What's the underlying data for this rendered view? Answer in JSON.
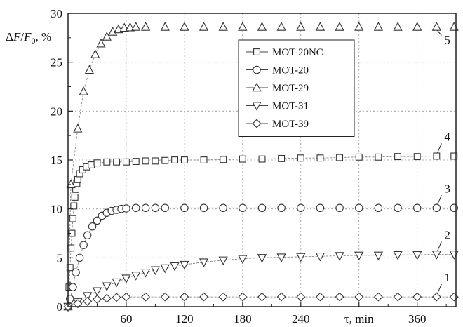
{
  "chart_data": {
    "type": "scatter",
    "ylabel_parts": [
      "Δ",
      "F",
      "/",
      "F",
      "0",
      ", %"
    ],
    "xlabel": "τ, min",
    "xlim": [
      0,
      400
    ],
    "ylim": [
      0,
      30
    ],
    "xticks": [
      60,
      120,
      180,
      240,
      360
    ],
    "xtick_minor": [
      30,
      90,
      150,
      210,
      270,
      330,
      390
    ],
    "yticks": [
      0,
      5,
      10,
      15,
      20,
      25,
      30
    ],
    "ytick_minor": [
      2.5,
      7.5,
      12.5,
      17.5,
      22.5,
      27.5
    ],
    "grid": true,
    "legend_position": "top-center",
    "series": [
      {
        "name": "MOT-20NC",
        "marker": "square",
        "curve_label": "4",
        "points": [
          [
            1,
            2
          ],
          [
            2,
            4
          ],
          [
            3,
            6
          ],
          [
            4,
            7.5
          ],
          [
            5,
            9
          ],
          [
            6,
            10.3
          ],
          [
            7,
            11.2
          ],
          [
            8,
            12
          ],
          [
            9,
            12.6
          ],
          [
            10,
            13
          ],
          [
            12,
            13.6
          ],
          [
            15,
            14
          ],
          [
            19,
            14.3
          ],
          [
            24,
            14.5
          ],
          [
            30,
            14.7
          ],
          [
            40,
            14.8
          ],
          [
            50,
            14.8
          ],
          [
            60,
            14.8
          ],
          [
            70,
            14.85
          ],
          [
            80,
            14.9
          ],
          [
            90,
            14.9
          ],
          [
            100,
            14.95
          ],
          [
            110,
            15
          ],
          [
            120,
            15
          ],
          [
            140,
            15
          ],
          [
            160,
            15.05
          ],
          [
            180,
            15.1
          ],
          [
            200,
            15.1
          ],
          [
            220,
            15.15
          ],
          [
            240,
            15.2
          ],
          [
            260,
            15.2
          ],
          [
            280,
            15.25
          ],
          [
            300,
            15.3
          ],
          [
            320,
            15.3
          ],
          [
            340,
            15.35
          ],
          [
            360,
            15.35
          ],
          [
            380,
            15.4
          ],
          [
            398,
            15.4
          ]
        ]
      },
      {
        "name": "MOT-20",
        "marker": "circle",
        "curve_label": "3",
        "points": [
          [
            2,
            0.8
          ],
          [
            5,
            2
          ],
          [
            8,
            3.5
          ],
          [
            12,
            5
          ],
          [
            16,
            6.3
          ],
          [
            20,
            7.3
          ],
          [
            25,
            8.2
          ],
          [
            30,
            8.8
          ],
          [
            35,
            9.3
          ],
          [
            40,
            9.6
          ],
          [
            45,
            9.8
          ],
          [
            50,
            9.9
          ],
          [
            55,
            10
          ],
          [
            60,
            10.05
          ],
          [
            70,
            10.1
          ],
          [
            80,
            10.1
          ],
          [
            90,
            10.1
          ],
          [
            100,
            10.1
          ],
          [
            120,
            10.1
          ],
          [
            140,
            10.1
          ],
          [
            160,
            10.1
          ],
          [
            180,
            10.1
          ],
          [
            200,
            10.1
          ],
          [
            220,
            10.1
          ],
          [
            240,
            10.1
          ],
          [
            260,
            10.1
          ],
          [
            280,
            10.1
          ],
          [
            300,
            10.1
          ],
          [
            320,
            10.1
          ],
          [
            340,
            10.1
          ],
          [
            360,
            10.1
          ],
          [
            380,
            10.1
          ],
          [
            398,
            10.1
          ]
        ]
      },
      {
        "name": "MOT-29",
        "marker": "triangle-up",
        "curve_label": "5",
        "points": [
          [
            0,
            0
          ],
          [
            3,
            12.5
          ],
          [
            10,
            18.2
          ],
          [
            16,
            22
          ],
          [
            22,
            24.2
          ],
          [
            28,
            25.8
          ],
          [
            34,
            26.9
          ],
          [
            40,
            27.6
          ],
          [
            46,
            28.1
          ],
          [
            52,
            28.35
          ],
          [
            58,
            28.5
          ],
          [
            64,
            28.55
          ],
          [
            70,
            28.6
          ],
          [
            80,
            28.6
          ],
          [
            100,
            28.6
          ],
          [
            120,
            28.6
          ],
          [
            140,
            28.6
          ],
          [
            160,
            28.6
          ],
          [
            180,
            28.6
          ],
          [
            200,
            28.6
          ],
          [
            220,
            28.6
          ],
          [
            240,
            28.6
          ],
          [
            260,
            28.6
          ],
          [
            280,
            28.6
          ],
          [
            300,
            28.6
          ],
          [
            320,
            28.6
          ],
          [
            340,
            28.6
          ],
          [
            360,
            28.6
          ],
          [
            380,
            28.6
          ],
          [
            398,
            28.6
          ]
        ]
      },
      {
        "name": "MOT-31",
        "marker": "triangle-down",
        "curve_label": "2",
        "points": [
          [
            0,
            0
          ],
          [
            10,
            0.5
          ],
          [
            20,
            1.1
          ],
          [
            30,
            1.6
          ],
          [
            40,
            2.1
          ],
          [
            50,
            2.5
          ],
          [
            60,
            2.9
          ],
          [
            70,
            3.2
          ],
          [
            80,
            3.5
          ],
          [
            90,
            3.75
          ],
          [
            100,
            3.95
          ],
          [
            110,
            4.15
          ],
          [
            120,
            4.3
          ],
          [
            140,
            4.55
          ],
          [
            160,
            4.75
          ],
          [
            180,
            4.9
          ],
          [
            200,
            5
          ],
          [
            220,
            5.05
          ],
          [
            240,
            5.1
          ],
          [
            260,
            5.15
          ],
          [
            280,
            5.2
          ],
          [
            300,
            5.25
          ],
          [
            320,
            5.25
          ],
          [
            340,
            5.3
          ],
          [
            360,
            5.3
          ],
          [
            380,
            5.35
          ],
          [
            398,
            5.35
          ]
        ]
      },
      {
        "name": "MOT-39",
        "marker": "diamond",
        "curve_label": "1",
        "points": [
          [
            0,
            0
          ],
          [
            10,
            0.3
          ],
          [
            20,
            0.55
          ],
          [
            30,
            0.75
          ],
          [
            40,
            0.85
          ],
          [
            50,
            0.95
          ],
          [
            60,
            1
          ],
          [
            80,
            1
          ],
          [
            100,
            1
          ],
          [
            120,
            1
          ],
          [
            140,
            1
          ],
          [
            160,
            1
          ],
          [
            180,
            1
          ],
          [
            200,
            1
          ],
          [
            220,
            1
          ],
          [
            240,
            1
          ],
          [
            260,
            1
          ],
          [
            280,
            1
          ],
          [
            300,
            1
          ],
          [
            320,
            1
          ],
          [
            340,
            1
          ],
          [
            360,
            1
          ],
          [
            380,
            1
          ],
          [
            398,
            1
          ]
        ]
      }
    ]
  }
}
